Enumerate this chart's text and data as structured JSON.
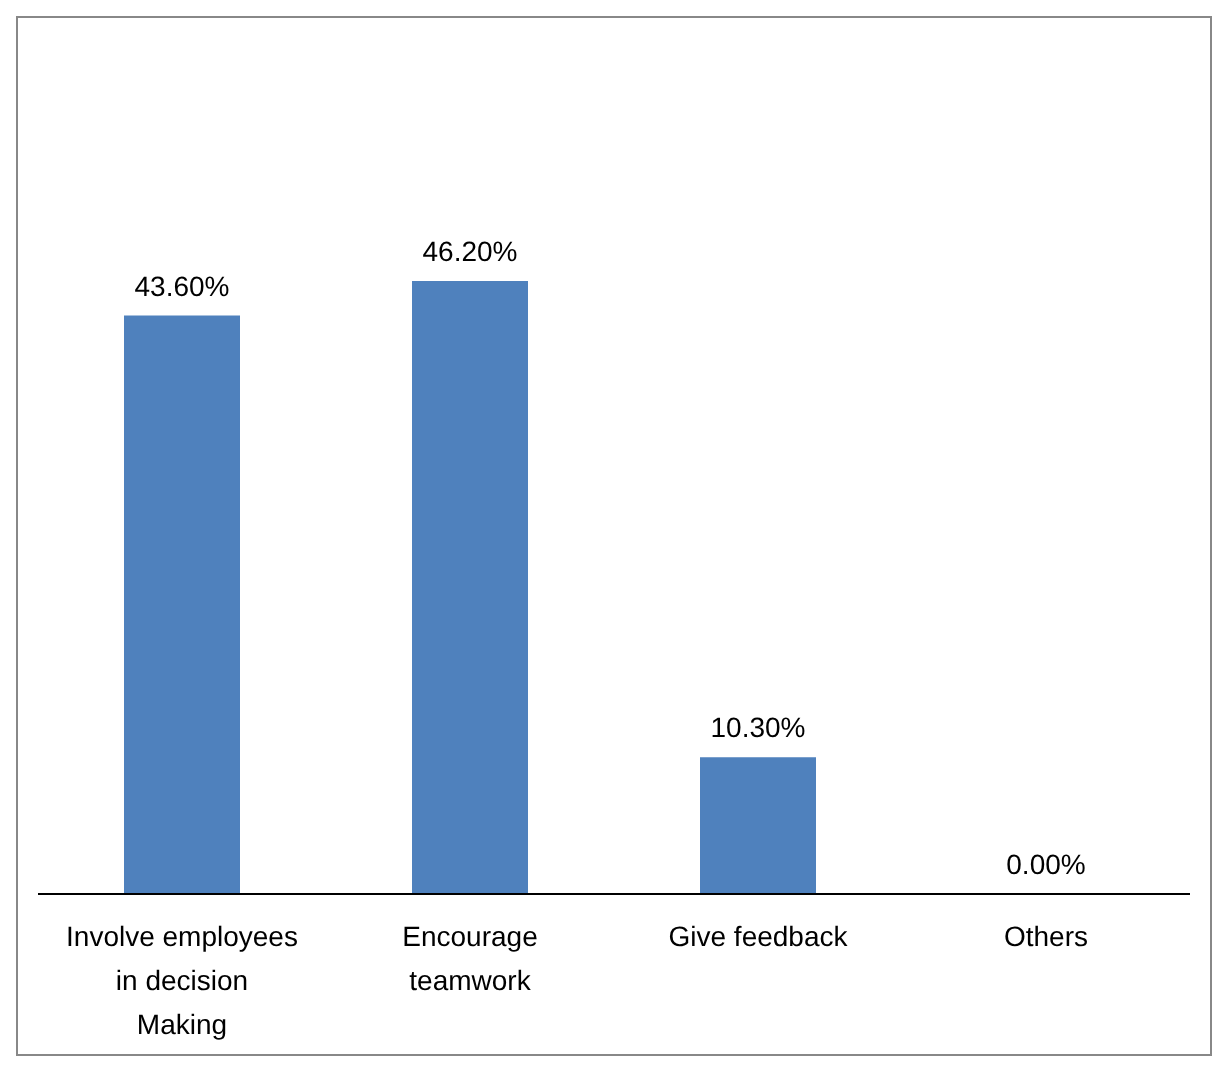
{
  "chart_data": {
    "type": "bar",
    "categories": [
      "Involve employees in decision Making",
      "Encourage teamwork",
      "Give feedback",
      "Others"
    ],
    "values": [
      43.6,
      46.2,
      10.3,
      0
    ],
    "value_labels": [
      "43.60%",
      "46.20%",
      "10.30%",
      "0.00%"
    ],
    "color": "#4f81bd",
    "grid": false,
    "legend": false
  }
}
